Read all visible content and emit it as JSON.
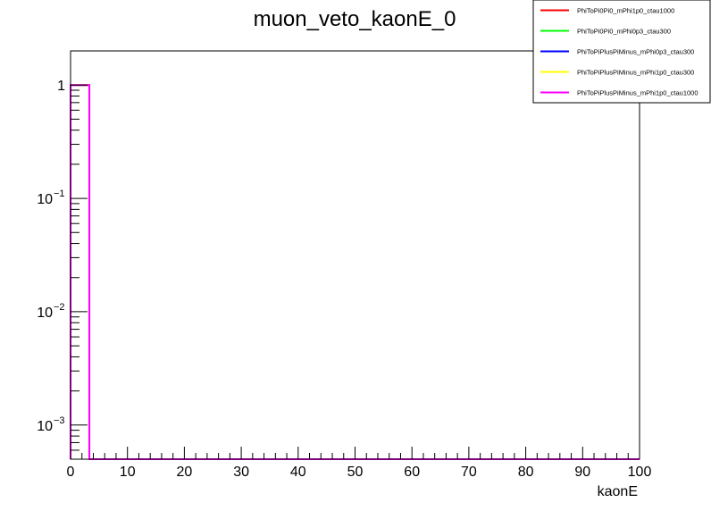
{
  "chart_data": {
    "type": "line",
    "title": "muon_veto_kaonE_0",
    "xlabel": "kaonE",
    "ylabel": "",
    "xlim": [
      0,
      100
    ],
    "ylim": [
      0.0005,
      2
    ],
    "yscale": "log",
    "x_ticks": [
      0,
      10,
      20,
      30,
      40,
      50,
      60,
      70,
      80,
      90,
      100
    ],
    "y_ticks": [
      {
        "value": 1,
        "base": "1",
        "exp": ""
      },
      {
        "value": 0.1,
        "base": "10",
        "exp": "−1"
      },
      {
        "value": 0.01,
        "base": "10",
        "exp": "−2"
      },
      {
        "value": 0.001,
        "base": "10",
        "exp": "−3"
      }
    ],
    "legend_position": "top-right",
    "grid": false,
    "series": [
      {
        "name": "PhiToPi0Pi0_mPhi1p0_ctau1000",
        "color": "#ff0000",
        "bins": [
          [
            0,
            3.3,
            1
          ]
        ]
      },
      {
        "name": "PhiToPi0Pi0_mPhi0p3_ctau300",
        "color": "#00ff00",
        "bins": [
          [
            0,
            3.3,
            1
          ]
        ]
      },
      {
        "name": "PhiToPiPlusPiMinus_mPhi0p3_ctau300",
        "color": "#0000ff",
        "bins": [
          [
            0,
            3.3,
            1
          ]
        ]
      },
      {
        "name": "PhiToPiPlusPiMinus_mPhi1p0_ctau300",
        "color": "#ffff00",
        "bins": [
          [
            0,
            3.3,
            1
          ]
        ]
      },
      {
        "name": "PhiToPiPlusPiMinus_mPhi1p0_ctau1000",
        "color": "#ff00ff",
        "bins": [
          [
            0,
            3.3,
            1
          ]
        ]
      }
    ]
  }
}
